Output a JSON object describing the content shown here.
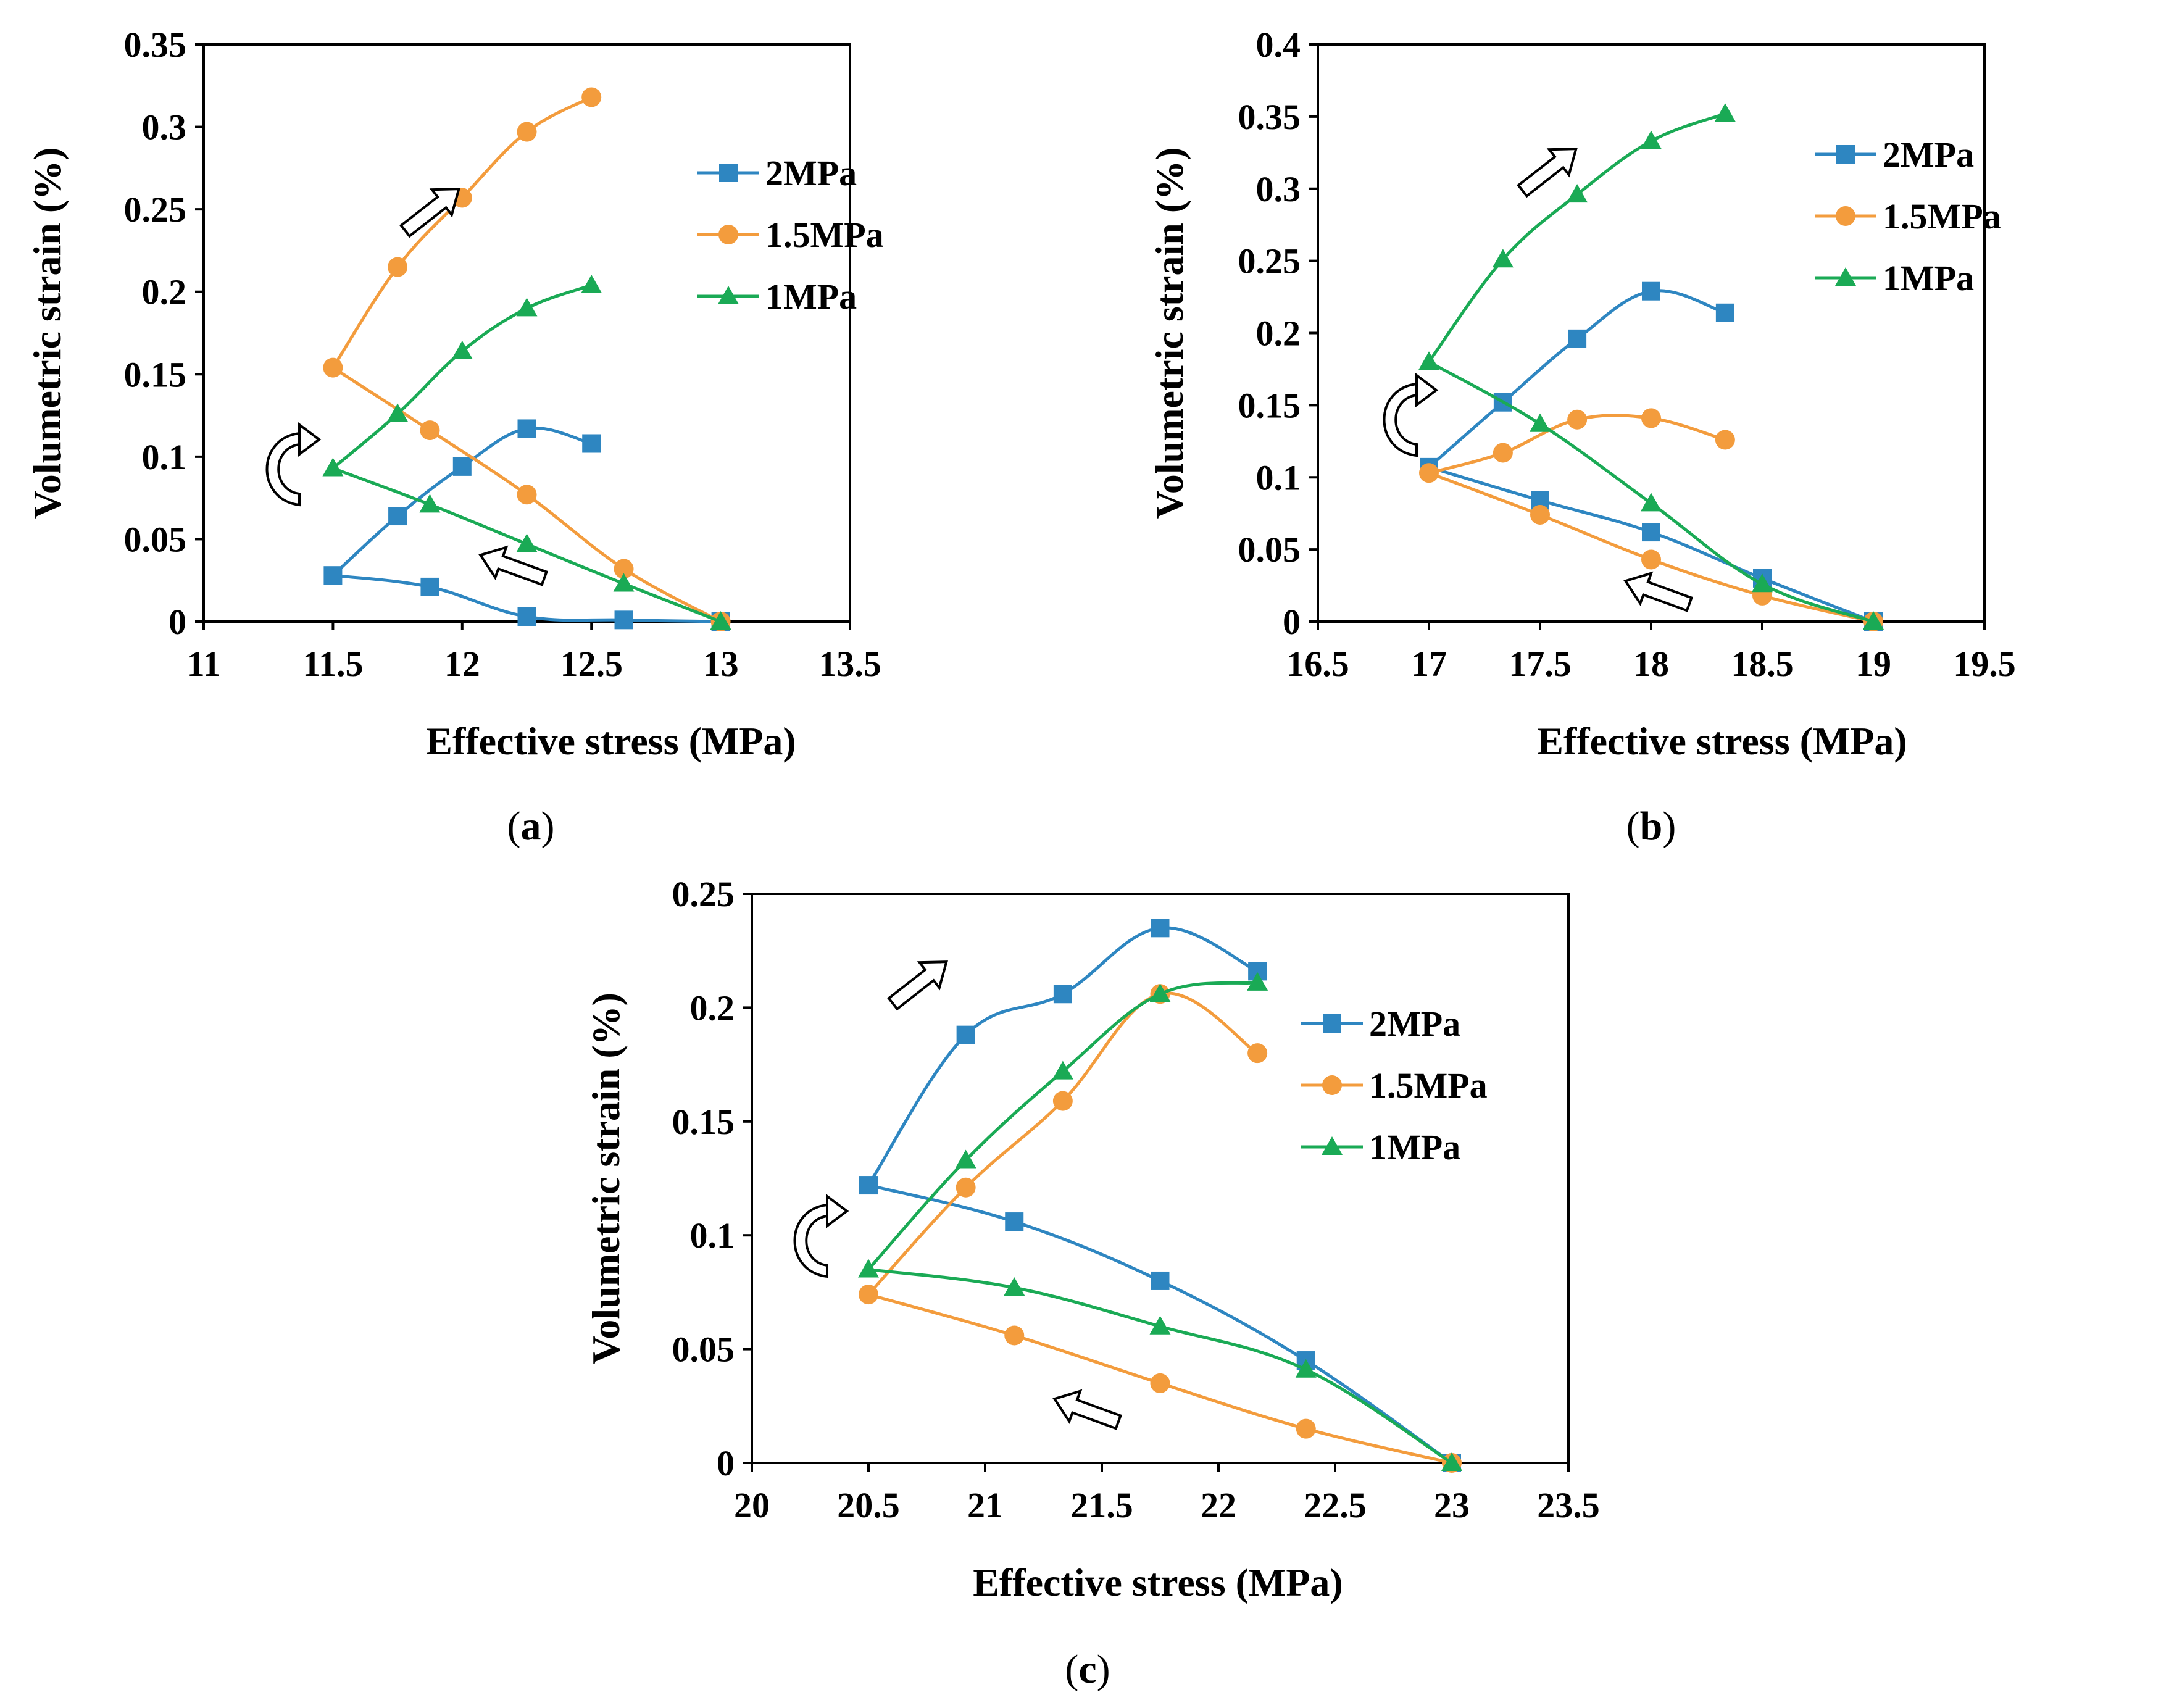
{
  "figure": {
    "colors": {
      "s2": "#2e86c1",
      "s15": "#f39c3d",
      "s1": "#1aaa55"
    },
    "icons": [
      "cycle-arrow-icon",
      "load-arrow-icon",
      "unload-arrow-icon"
    ]
  },
  "chart_data": [
    {
      "id": "a",
      "type": "line",
      "caption_letter": "a",
      "caption_open": "(",
      "caption_close": ")",
      "xlabel": "Effective stress (MPa)",
      "ylabel": "Volumetric strain (%)",
      "xlim": [
        11,
        13.5
      ],
      "ylim": [
        0,
        0.35
      ],
      "xticks": [
        11,
        11.5,
        12,
        12.5,
        13,
        13.5
      ],
      "xtick_labels": [
        "11",
        "11.5",
        "12",
        "12.5",
        "13",
        "13.5"
      ],
      "yticks": [
        0,
        0.05,
        0.1,
        0.15,
        0.2,
        0.25,
        0.3,
        0.35
      ],
      "ytick_labels": [
        "0",
        "0.05",
        "0.1",
        "0.15",
        "0.2",
        "0.25",
        "0.3",
        "0.35"
      ],
      "legend": {
        "position": "top-right",
        "labels": [
          "2MPa",
          "1.5MPa",
          "1MPa"
        ]
      },
      "series": [
        {
          "name": "2MPa",
          "marker": "square",
          "x": [
            13,
            12.625,
            12.25,
            11.875,
            11.5,
            11.75,
            12,
            12.25,
            12.5
          ],
          "y": [
            0,
            0.001,
            0.003,
            0.021,
            0.028,
            0.064,
            0.094,
            0.117,
            0.108
          ]
        },
        {
          "name": "1.5MPa",
          "marker": "circle",
          "x": [
            13,
            12.625,
            12.25,
            11.875,
            11.5,
            11.75,
            12,
            12.25,
            12.5
          ],
          "y": [
            0,
            0.032,
            0.077,
            0.116,
            0.154,
            0.215,
            0.257,
            0.297,
            0.318
          ]
        },
        {
          "name": "1MPa",
          "marker": "triangle",
          "x": [
            13,
            12.625,
            12.25,
            11.875,
            11.5,
            11.75,
            12,
            12.25,
            12.5
          ],
          "y": [
            0,
            0.023,
            0.047,
            0.071,
            0.093,
            0.126,
            0.164,
            0.19,
            0.204
          ]
        }
      ]
    },
    {
      "id": "b",
      "type": "line",
      "caption_letter": "b",
      "caption_open": "(",
      "caption_close": ")",
      "xlabel": "Effective stress (MPa)",
      "ylabel": "Volumetric strain (%)",
      "xlim": [
        16.5,
        19.5
      ],
      "ylim": [
        0,
        0.4
      ],
      "xticks": [
        16.5,
        17,
        17.5,
        18,
        18.5,
        19,
        19.5
      ],
      "xtick_labels": [
        "16.5",
        "17",
        "17.5",
        "18",
        "18.5",
        "19",
        "19.5"
      ],
      "yticks": [
        0,
        0.05,
        0.1,
        0.15,
        0.2,
        0.25,
        0.3,
        0.35,
        0.4
      ],
      "ytick_labels": [
        "0",
        "0.05",
        "0.1",
        "0.15",
        "0.2",
        "0.25",
        "0.3",
        "0.35",
        "0.4"
      ],
      "legend": {
        "position": "top-right",
        "labels": [
          "2MPa",
          "1.5MPa",
          "1MPa"
        ]
      },
      "series": [
        {
          "name": "2MPa",
          "marker": "square",
          "x": [
            19,
            18.5,
            18,
            17.5,
            17,
            17.333,
            17.667,
            18,
            18.333
          ],
          "y": [
            0,
            0.03,
            0.062,
            0.084,
            0.107,
            0.152,
            0.196,
            0.229,
            0.214
          ]
        },
        {
          "name": "1.5MPa",
          "marker": "circle",
          "x": [
            19,
            18.5,
            18,
            17.5,
            17,
            17.333,
            17.667,
            18,
            18.333
          ],
          "y": [
            0,
            0.018,
            0.043,
            0.074,
            0.103,
            0.117,
            0.14,
            0.141,
            0.126
          ]
        },
        {
          "name": "1MPa",
          "marker": "triangle",
          "x": [
            19,
            18.5,
            18,
            17.5,
            17,
            17.333,
            17.667,
            18,
            18.333
          ],
          "y": [
            0,
            0.026,
            0.082,
            0.137,
            0.18,
            0.251,
            0.296,
            0.333,
            0.352
          ]
        }
      ]
    },
    {
      "id": "c",
      "type": "line",
      "caption_letter": "c",
      "caption_open": "(",
      "caption_close": ")",
      "xlabel": "Effective stress (MPa)",
      "ylabel": "Volumetric strain (%)",
      "xlim": [
        20,
        23.5
      ],
      "ylim": [
        0,
        0.25
      ],
      "xticks": [
        20,
        20.5,
        21,
        21.5,
        22,
        22.5,
        23,
        23.5
      ],
      "xtick_labels": [
        "20",
        "20.5",
        "21",
        "21.5",
        "22",
        "22.5",
        "23",
        "23.5"
      ],
      "yticks": [
        0,
        0.05,
        0.1,
        0.15,
        0.2,
        0.25
      ],
      "ytick_labels": [
        "0",
        "0.05",
        "0.1",
        "0.15",
        "0.2",
        "0.25"
      ],
      "legend": {
        "position": "top-right",
        "labels": [
          "2MPa",
          "1.5MPa",
          "1MPa"
        ]
      },
      "series": [
        {
          "name": "2MPa",
          "marker": "square",
          "x": [
            23,
            22.375,
            21.75,
            21.125,
            20.5,
            20.917,
            21.333,
            21.75,
            22.167
          ],
          "y": [
            0,
            0.045,
            0.08,
            0.106,
            0.122,
            0.188,
            0.206,
            0.235,
            0.216
          ]
        },
        {
          "name": "1.5MPa",
          "marker": "circle",
          "x": [
            23,
            22.375,
            21.75,
            21.125,
            20.5,
            20.917,
            21.333,
            21.75,
            22.167
          ],
          "y": [
            0,
            0.015,
            0.035,
            0.056,
            0.074,
            0.121,
            0.159,
            0.206,
            0.18
          ]
        },
        {
          "name": "1MPa",
          "marker": "triangle",
          "x": [
            23,
            22.375,
            21.75,
            21.125,
            20.5,
            20.917,
            21.333,
            21.75,
            22.167
          ],
          "y": [
            0,
            0.041,
            0.06,
            0.077,
            0.085,
            0.133,
            0.172,
            0.206,
            0.211
          ]
        }
      ]
    }
  ]
}
